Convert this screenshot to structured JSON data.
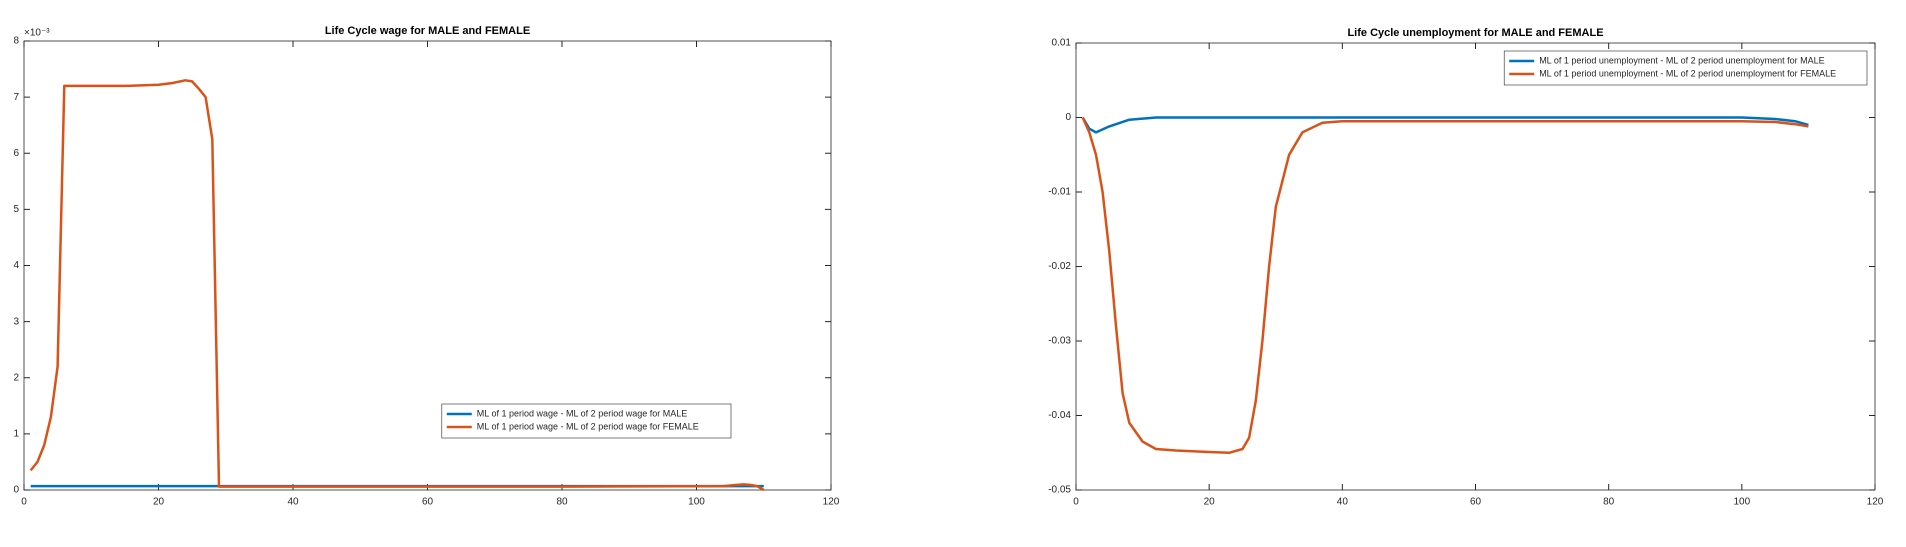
{
  "chart_data": [
    {
      "type": "line",
      "title": "Life Cycle wage for MALE and FEMALE",
      "axis_exponent": "×10⁻³",
      "xlim": [
        0,
        120
      ],
      "xticks": [
        0,
        20,
        40,
        60,
        80,
        100,
        120
      ],
      "ylim": [
        0,
        8
      ],
      "yticks": [
        0,
        1,
        2,
        3,
        4,
        5,
        6,
        7,
        8
      ],
      "legend": "lower-right",
      "series": [
        {
          "name": "ML of 1 period wage - ML of 2 period wage for MALE",
          "color": "#0072bd",
          "x": [
            1,
            29,
            60,
            110
          ],
          "values": [
            0.07,
            0.07,
            0.07,
            0.07
          ]
        },
        {
          "name": "ML of 1 period wage - ML of 2 period wage for FEMALE",
          "color": "#d95319",
          "x": [
            1,
            2,
            3,
            4,
            5,
            6,
            10,
            15,
            20,
            22,
            24,
            25,
            26,
            27,
            28,
            29,
            40,
            80,
            104,
            106,
            107,
            108,
            109,
            110
          ],
          "values": [
            0.35,
            0.5,
            0.8,
            1.3,
            2.2,
            7.2,
            7.2,
            7.2,
            7.22,
            7.25,
            7.3,
            7.28,
            7.15,
            7.0,
            6.25,
            0.06,
            0.06,
            0.06,
            0.07,
            0.09,
            0.1,
            0.09,
            0.07,
            0
          ]
        }
      ]
    },
    {
      "type": "line",
      "title": "Life Cycle unemployment for MALE and FEMALE",
      "xlim": [
        0,
        120
      ],
      "xticks": [
        0,
        20,
        40,
        60,
        80,
        100,
        120
      ],
      "ylim": [
        -0.05,
        0.01
      ],
      "yticks": [
        -0.05,
        -0.04,
        -0.03,
        -0.02,
        -0.01,
        0,
        0.01
      ],
      "legend": "upper-right",
      "series": [
        {
          "name": "ML of 1 period unemployment - ML of 2 period unemployment for MALE",
          "color": "#0072bd",
          "x": [
            1,
            2,
            3,
            5,
            8,
            12,
            40,
            100,
            105,
            108,
            110
          ],
          "values": [
            0,
            -0.0015,
            -0.002,
            -0.0012,
            -0.0003,
            0,
            0,
            0,
            -0.0002,
            -0.0005,
            -0.001
          ]
        },
        {
          "name": "ML of 1 period unemployment - ML of 2 period unemployment for FEMALE",
          "color": "#d95319",
          "x": [
            1,
            2,
            3,
            4,
            5,
            6,
            7,
            8,
            10,
            12,
            15,
            20,
            23,
            25,
            26,
            27,
            28,
            29,
            30,
            32,
            34,
            37,
            40,
            100,
            105,
            108,
            110
          ],
          "values": [
            0,
            -0.002,
            -0.005,
            -0.01,
            -0.018,
            -0.028,
            -0.037,
            -0.041,
            -0.0435,
            -0.0445,
            -0.0447,
            -0.0449,
            -0.045,
            -0.0445,
            -0.043,
            -0.038,
            -0.03,
            -0.02,
            -0.012,
            -0.005,
            -0.002,
            -0.0007,
            -0.0005,
            -0.0005,
            -0.0006,
            -0.0009,
            -0.0012
          ]
        }
      ]
    }
  ]
}
